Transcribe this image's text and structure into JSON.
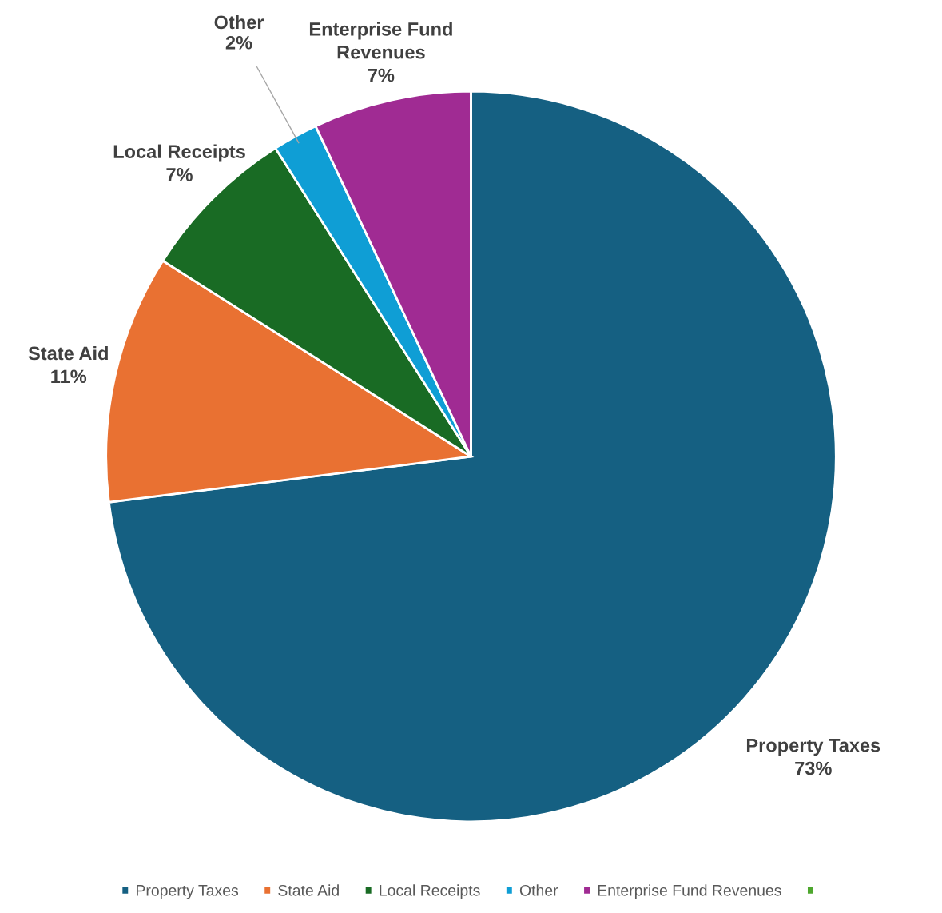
{
  "chart_data": {
    "type": "pie",
    "categories": [
      "Property Taxes",
      "State Aid",
      "Local Receipts",
      "Other",
      "Enterprise Fund Revenues",
      null
    ],
    "values": [
      73,
      11,
      7,
      2,
      7,
      0
    ],
    "colors": [
      "#156082",
      "#e97132",
      "#196b24",
      "#0f9ed5",
      "#a02b93",
      "#4ea72e"
    ],
    "value_labels": [
      "73%",
      "11%",
      "7%",
      "2%",
      "7%",
      null
    ],
    "legend": "bottom"
  }
}
